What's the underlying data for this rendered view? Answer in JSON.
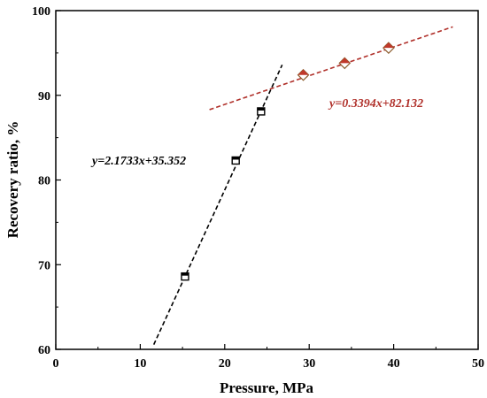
{
  "chart_data": {
    "type": "scatter",
    "xlabel": "Pressure, MPa",
    "ylabel": "Recovery ratio, %",
    "xlim": [
      0,
      50
    ],
    "ylim": [
      60,
      100
    ],
    "x_ticks": [
      0,
      10,
      20,
      30,
      40,
      50
    ],
    "y_ticks": [
      60,
      70,
      80,
      90,
      100
    ],
    "grid": false,
    "series": [
      {
        "marker": "square",
        "color": "#000000",
        "points": [
          {
            "x": 15.3,
            "y": 68.6
          },
          {
            "x": 21.3,
            "y": 82.3
          },
          {
            "x": 24.3,
            "y": 88.1
          }
        ],
        "fit": {
          "slope": 2.1733,
          "intercept": 35.352,
          "x_range": [
            11.6,
            26.8
          ],
          "color": "#000000",
          "label": "y=2.1733x+35.352"
        }
      },
      {
        "marker": "diamond",
        "color": "#c0392b",
        "points": [
          {
            "x": 29.3,
            "y": 92.4
          },
          {
            "x": 34.2,
            "y": 93.8
          },
          {
            "x": 39.4,
            "y": 95.6
          }
        ],
        "fit": {
          "slope": 0.3394,
          "intercept": 82.132,
          "x_range": [
            18.2,
            47.0
          ],
          "color": "#b0302a",
          "label": "y=0.3394x+82.132"
        }
      }
    ]
  }
}
